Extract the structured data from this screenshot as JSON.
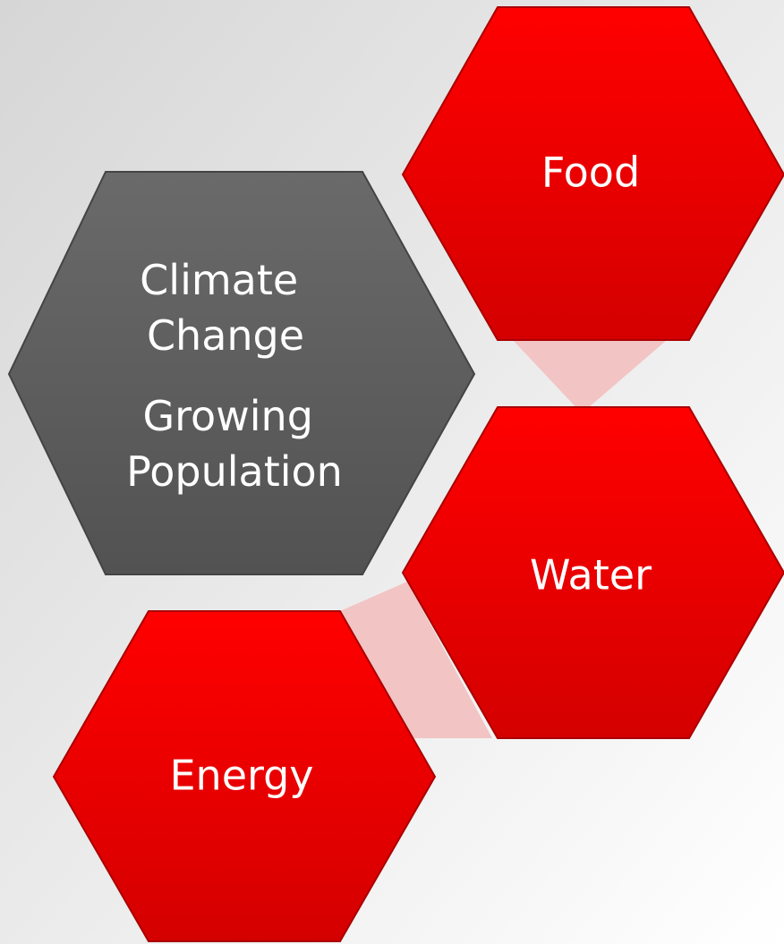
{
  "nodes": [
    {
      "label": "Food"
    },
    {
      "label": "Climate Change"
    },
    {
      "label": "Growing Population"
    },
    {
      "label": "Water"
    },
    {
      "label": "Energy"
    }
  ]
}
